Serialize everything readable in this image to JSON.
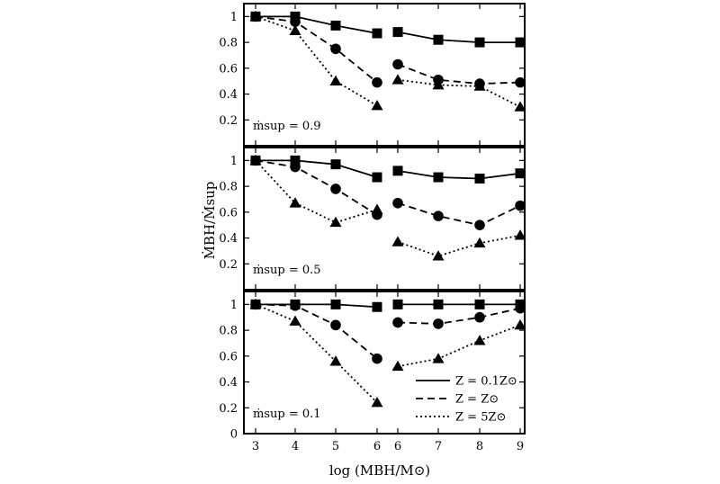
{
  "chart_data": [
    {
      "type": "line",
      "panel_label": "ṁsup = 0.9",
      "x": [
        3,
        4,
        5,
        6,
        6,
        7,
        8,
        9
      ],
      "xlim": [
        3,
        9
      ],
      "ylim": [
        0,
        1.1
      ],
      "yticks": [
        "1",
        "0.8",
        "0.6",
        "0.4",
        "0.2"
      ],
      "series": [
        {
          "name": "Z = 0.1Z⊙",
          "marker": "square",
          "dash": "solid",
          "values": [
            1.0,
            1.0,
            0.93,
            0.87,
            0.88,
            0.82,
            0.8,
            0.8
          ]
        },
        {
          "name": "Z = Z⊙",
          "marker": "circle",
          "dash": "dashed",
          "values": [
            1.0,
            0.96,
            0.75,
            0.49,
            0.63,
            0.51,
            0.48,
            0.49
          ]
        },
        {
          "name": "Z = 5Z⊙",
          "marker": "triangle",
          "dash": "dotted",
          "values": [
            1.0,
            0.89,
            0.5,
            0.31,
            0.51,
            0.47,
            0.46,
            0.3
          ]
        }
      ]
    },
    {
      "type": "line",
      "panel_label": "ṁsup = 0.5",
      "x": [
        3,
        4,
        5,
        6,
        6,
        7,
        8,
        9
      ],
      "xlim": [
        3,
        9
      ],
      "ylim": [
        0,
        1.1
      ],
      "yticks": [
        "1",
        "0.8",
        "0.6",
        "0.4",
        "0.2"
      ],
      "series": [
        {
          "name": "Z = 0.1Z⊙",
          "marker": "square",
          "dash": "solid",
          "values": [
            1.0,
            1.0,
            0.97,
            0.87,
            0.92,
            0.87,
            0.86,
            0.9
          ]
        },
        {
          "name": "Z = Z⊙",
          "marker": "circle",
          "dash": "dashed",
          "values": [
            1.0,
            0.95,
            0.78,
            0.58,
            0.67,
            0.57,
            0.5,
            0.65
          ]
        },
        {
          "name": "Z = 5Z⊙",
          "marker": "triangle",
          "dash": "dotted",
          "values": [
            1.0,
            0.67,
            0.52,
            0.62,
            0.37,
            0.26,
            0.36,
            0.42
          ]
        }
      ]
    },
    {
      "type": "line",
      "panel_label": "ṁsup = 0.1",
      "x": [
        3,
        4,
        5,
        6,
        6,
        7,
        8,
        9
      ],
      "xlim": [
        3,
        9
      ],
      "ylim": [
        0,
        1.1
      ],
      "yticks": [
        "1",
        "0.8",
        "0.6",
        "0.4",
        "0.2",
        "0"
      ],
      "xticks": [
        "3",
        "4",
        "5",
        "6",
        "6",
        "7",
        "8",
        "9"
      ],
      "series": [
        {
          "name": "Z = 0.1Z⊙",
          "marker": "square",
          "dash": "solid",
          "values": [
            1.0,
            1.0,
            1.0,
            0.98,
            1.0,
            1.0,
            1.0,
            1.0
          ]
        },
        {
          "name": "Z = Z⊙",
          "marker": "circle",
          "dash": "dashed",
          "values": [
            1.0,
            0.99,
            0.84,
            0.58,
            0.86,
            0.85,
            0.9,
            0.97
          ]
        },
        {
          "name": "Z = 5Z⊙",
          "marker": "triangle",
          "dash": "dotted",
          "values": [
            1.0,
            0.87,
            0.56,
            0.24,
            0.52,
            0.58,
            0.72,
            0.84
          ]
        }
      ]
    }
  ],
  "axes": {
    "ylabel": "ṀBH/Ṁsup",
    "xlabel": "log (MBH/M⊙)"
  },
  "legend": {
    "placement": "lower-right",
    "entries": [
      "Z = 0.1Z⊙",
      "Z = Z⊙",
      "Z = 5Z⊙"
    ]
  },
  "colors": {
    "ink": "#000000",
    "background": "#ffffff"
  }
}
